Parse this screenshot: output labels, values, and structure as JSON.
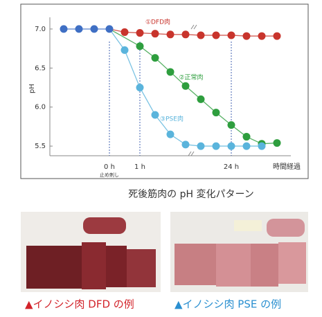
{
  "chart_data": {
    "type": "line",
    "y_label": "pH",
    "x_label": "時間経過",
    "annotation": "止め刺し",
    "categories": [
      null,
      null,
      null,
      "0 h",
      null,
      "1 h",
      null,
      null,
      null,
      null,
      null,
      "24 h",
      null,
      null,
      null
    ],
    "ylim": [
      5.35,
      7.15
    ],
    "yticks": [
      5.5,
      {
        "value": 6,
        "label": "6.0"
      },
      6.5,
      {
        "value": 7,
        "label": "7.0"
      }
    ],
    "series": [
      {
        "color": "#3f6fc4",
        "values": [
          7.0,
          7.0,
          7.0,
          7.0,
          null,
          null,
          null,
          null,
          null,
          null,
          null,
          null,
          null,
          null,
          null
        ]
      },
      {
        "name": "①DFD肉",
        "color": "#c8342c",
        "values": [
          null,
          null,
          null,
          7.0,
          6.96,
          6.95,
          6.94,
          6.93,
          6.93,
          6.92,
          6.92,
          6.92,
          6.91,
          6.91,
          6.91
        ]
      },
      {
        "name": "②正常肉",
        "color": "#2e9e3e",
        "values": [
          null,
          null,
          null,
          7.0,
          null,
          6.78,
          6.63,
          6.45,
          6.27,
          6.1,
          5.93,
          5.77,
          5.62,
          5.53,
          5.54
        ]
      },
      {
        "name": "③PSE肉",
        "color": "#5ab4dc",
        "values": [
          null,
          null,
          null,
          7.0,
          6.73,
          6.25,
          5.9,
          5.65,
          5.52,
          5.5,
          5.5,
          5.5,
          5.5,
          5.5,
          null
        ]
      }
    ]
  },
  "chart_caption": "死後筋肉の pH 変化パターン",
  "photo_captions": [
    "▲イノシシ肉 DFD の例",
    "▲イノシシ肉 PSE の例"
  ]
}
